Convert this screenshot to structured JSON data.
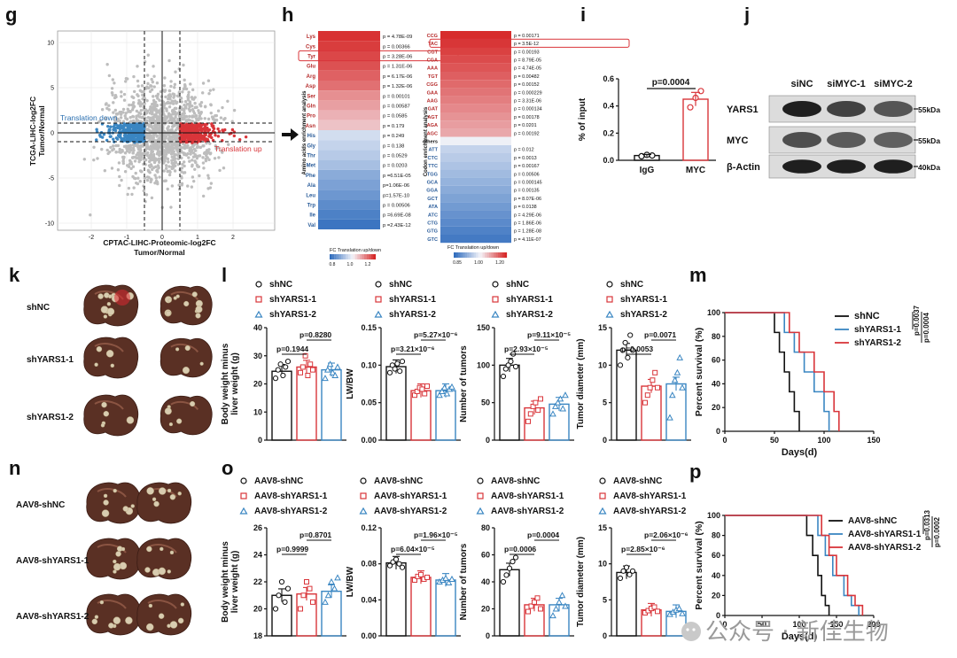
{
  "panels": {
    "g": "g",
    "h": "h",
    "i": "i",
    "j": "j",
    "k": "k",
    "l": "l",
    "m": "m",
    "n": "n",
    "o": "o",
    "p": "p"
  },
  "colors": {
    "black": "#111111",
    "red": "#d9353a",
    "blue": "#3a86c2",
    "gray": "#bdbdbd"
  },
  "scatter": {
    "ylabel": "TCGA-LIHC-log2FC\nTumor/Normal",
    "xlabel1": "CPTAC-LIHC-Proteomic-log2FC",
    "xlabel2": "Tumor/Normal",
    "label_down": "Translation down",
    "label_up": "Translation up",
    "xticks": [
      "-2",
      "-1",
      "0",
      "1",
      "2"
    ],
    "yticks": [
      "10",
      "5",
      "0",
      "-5",
      "-10"
    ]
  },
  "heatmap_aa": {
    "side_label": "Amino acids enrichment analysis",
    "rows": [
      {
        "aa": "Lys",
        "p": "p = 4.78E-09"
      },
      {
        "aa": "Cys",
        "p": "p = 0.00366"
      },
      {
        "aa": "Tyr",
        "p": "p = 3.28E-06"
      },
      {
        "aa": "Glu",
        "p": "p = 1.31E-06"
      },
      {
        "aa": "Arg",
        "p": "p = 6.17E-06"
      },
      {
        "aa": "Asp",
        "p": "p = 1.32E-06"
      },
      {
        "aa": "Ser",
        "p": "p = 0.00101"
      },
      {
        "aa": "Gln",
        "p": "p = 0.00587"
      },
      {
        "aa": "Pro",
        "p": "p = 0.0585"
      },
      {
        "aa": "Asn",
        "p": "p = 0.179"
      },
      {
        "aa": "His",
        "p": "p = 0.249"
      },
      {
        "aa": "Gly",
        "p": "p = 0.138"
      },
      {
        "aa": "Thr",
        "p": "p = 0.0529"
      },
      {
        "aa": "Met",
        "p": "p = 0.0203"
      },
      {
        "aa": "Phe",
        "p": "p =6.51E-05"
      },
      {
        "aa": "Ala",
        "p": "p=1.06E-06"
      },
      {
        "aa": "Leu",
        "p": "p=1.57E-10"
      },
      {
        "aa": "Trp",
        "p": "p = 0.00506"
      },
      {
        "aa": "Ile",
        "p": "p =6.69E-08"
      },
      {
        "aa": "Val",
        "p": "p =2.43E-12"
      }
    ],
    "legend_title": "FC Translation up/down",
    "legend_ticks": [
      "0.8",
      "1.0",
      "1.2"
    ]
  },
  "heatmap_codon": {
    "side_label": "Codon enrichment analysis",
    "others_label": "others",
    "rows": [
      {
        "c": "CCG",
        "p": "p = 0.00171"
      },
      {
        "c": "TAC",
        "p": "p = 3.5E-12"
      },
      {
        "c": "CGT",
        "p": "p = 0.00193"
      },
      {
        "c": "CGA",
        "p": "p = 8.79E-05"
      },
      {
        "c": "AAA",
        "p": "p = 4.74E-05"
      },
      {
        "c": "TGT",
        "p": "p = 0.00482"
      },
      {
        "c": "CGG",
        "p": "p = 0.00152"
      },
      {
        "c": "GAA",
        "p": "p = 0.000229"
      },
      {
        "c": "AAG",
        "p": "p = 3.31E-06"
      },
      {
        "c": "GAT",
        "p": "p = 0.000134"
      },
      {
        "c": "AGT",
        "p": "p = 0.00178"
      },
      {
        "c": "AGA",
        "p": "p = 0.0201"
      },
      {
        "c": "AGC",
        "p": "p = 0.00192"
      },
      {
        "c": "ATT",
        "p": "p = 0.012"
      },
      {
        "c": "CTC",
        "p": "p = 0.0013"
      },
      {
        "c": "TTC",
        "p": "p = 0.00167"
      },
      {
        "c": "TGG",
        "p": "p = 0.00506"
      },
      {
        "c": "GCA",
        "p": "p = 0.000145"
      },
      {
        "c": "GGA",
        "p": "p = 0.00135"
      },
      {
        "c": "GCT",
        "p": "p = 8.07E-06"
      },
      {
        "c": "ATA",
        "p": "p = 0.0138"
      },
      {
        "c": "ATC",
        "p": "p = 4.29E-06"
      },
      {
        "c": "CTG",
        "p": "p = 1.86E-06"
      },
      {
        "c": "GTG",
        "p": "p = 1.28E-08"
      },
      {
        "c": "GTC",
        "p": "p = 4.11E-07"
      }
    ],
    "legend_title": "FC Translation up/down",
    "legend_ticks": [
      "0.85",
      "1.00",
      "1.20"
    ]
  },
  "panel_i": {
    "ylabel": "% of input",
    "pval": "p=0.0004",
    "yticks": [
      "0.0",
      "0.2",
      "0.4",
      "0.6"
    ],
    "cats": [
      "IgG",
      "MYC"
    ]
  },
  "panel_j": {
    "lanes": [
      "siNC",
      "siMYC-1",
      "siMYC-2"
    ],
    "bands": [
      "YARS1",
      "MYC",
      "β-Actin"
    ],
    "sizes": [
      "55kDa",
      "55kDa",
      "40kDa"
    ]
  },
  "panel_k": {
    "labels": [
      "shNC",
      "shYARS1-1",
      "shYARS1-2"
    ]
  },
  "panel_n": {
    "labels": [
      "AAV8-shNC",
      "AAV8-shYARS1-1",
      "AAV8-shYARS1-2"
    ]
  },
  "panel_l": {
    "legend": [
      "shNC",
      "shYARS1-1",
      "shYARS1-2"
    ],
    "plots": [
      {
        "ylabel": "Body weight minus\nliver weight (g)",
        "yticks": [
          "0",
          "10",
          "20",
          "30",
          "40"
        ],
        "p1": "p=0.1944",
        "p2": "p=0.8280"
      },
      {
        "ylabel": "LW/BW",
        "yticks": [
          "0.00",
          "0.05",
          "0.10",
          "0.15"
        ],
        "p1": "p=3.21×10⁻⁶",
        "p2": "p=5.27×10⁻⁶"
      },
      {
        "ylabel": "Number of tumors",
        "yticks": [
          "0",
          "50",
          "100",
          "150"
        ],
        "p1": "p=2.93×10⁻⁵",
        "p2": "p=9.11×10⁻⁵"
      },
      {
        "ylabel": "Tumor diameter (mm)",
        "yticks": [
          "0",
          "5",
          "10",
          "15"
        ],
        "p1": "p=0.0053",
        "p2": "p=0.0071"
      }
    ]
  },
  "panel_o": {
    "legend": [
      "AAV8-shNC",
      "AAV8-shYARS1-1",
      "AAV8-shYARS1-2"
    ],
    "plots": [
      {
        "ylabel": "Body weight minus\nliver weight (g)",
        "yticks": [
          "18",
          "20",
          "22",
          "24",
          "26"
        ],
        "p1": "p=0.9999",
        "p2": "p=0.8701"
      },
      {
        "ylabel": "LW/BW",
        "yticks": [
          "0.00",
          "0.04",
          "0.08",
          "0.12"
        ],
        "p1": "p=6.04×10⁻⁵",
        "p2": "p=1.96×10⁻⁵"
      },
      {
        "ylabel": "Number of tumors",
        "yticks": [
          "0",
          "20",
          "40",
          "60",
          "80"
        ],
        "p1": "p=0.0006",
        "p2": "p=0.0004"
      },
      {
        "ylabel": "Tumor diameter (mm)",
        "yticks": [
          "0",
          "5",
          "10",
          "15"
        ],
        "p1": "p=2.85×10⁻⁶",
        "p2": "p=2.06×10⁻⁶"
      }
    ]
  },
  "panel_m": {
    "ylabel": "Percent survival (%)",
    "xlabel": "Days(d)",
    "legend": [
      "shNC",
      "shYARS1-1",
      "shYARS1-2"
    ],
    "xticks": [
      "0",
      "50",
      "100",
      "150"
    ],
    "yticks": [
      "0",
      "20",
      "40",
      "60",
      "80",
      "100"
    ],
    "p1": "p=0.0037",
    "p2": "p=0.0004"
  },
  "panel_p": {
    "ylabel": "Percent survival (%)",
    "xlabel": "Days(d)",
    "legend": [
      "AAV8-shNC",
      "AAV8-shYARS1-1",
      "AAV8-shYARS1-2"
    ],
    "xticks": [
      "0",
      "50",
      "100",
      "150",
      "200"
    ],
    "yticks": [
      "0",
      "20",
      "40",
      "60",
      "80",
      "100"
    ],
    "p1": "p=0.0313",
    "p2": "p=0.0002"
  },
  "watermark": "公众号 · 新佳生物",
  "chart_data": [
    {
      "type": "bar",
      "title": "i",
      "ylabel": "% of input",
      "categories": [
        "IgG",
        "MYC"
      ],
      "values": [
        0.035,
        0.45
      ],
      "points": [
        [
          0.03,
          0.04,
          0.035
        ],
        [
          0.39,
          0.46,
          0.51
        ]
      ],
      "ylim": [
        0,
        0.6
      ],
      "annotation": "p=0.0004"
    },
    {
      "type": "bar",
      "title": "l",
      "categories": [
        "shNC",
        "shYARS1-1",
        "shYARS1-2"
      ],
      "series": [
        {
          "name": "Body weight minus liver weight (g)",
          "values": [
            24.5,
            26,
            25
          ],
          "ylim": [
            0,
            40
          ],
          "points": [
            [
              22,
              25,
              27,
              23,
              26,
              28
            ],
            [
              24,
              26,
              30,
              23,
              27,
              25
            ],
            [
              22,
              25,
              27,
              24,
              23,
              26
            ]
          ]
        },
        {
          "name": "LW/BW",
          "values": [
            0.098,
            0.066,
            0.066
          ],
          "ylim": [
            0,
            0.15
          ],
          "points": [
            [
              0.09,
              0.1,
              0.095,
              0.102,
              0.092,
              0.105
            ],
            [
              0.06,
              0.065,
              0.07,
              0.068,
              0.062,
              0.072
            ],
            [
              0.06,
              0.065,
              0.07,
              0.062,
              0.068,
              0.071
            ]
          ]
        },
        {
          "name": "Number of tumors",
          "values": [
            100,
            43,
            48
          ],
          "ylim": [
            0,
            150
          ],
          "points": [
            [
              85,
              95,
              100,
              105,
              115,
              98
            ],
            [
              25,
              35,
              45,
              50,
              40,
              55
            ],
            [
              35,
              45,
              50,
              55,
              42,
              60
            ]
          ]
        },
        {
          "name": "Tumor diameter (mm)",
          "values": [
            12,
            7.2,
            7.5
          ],
          "ylim": [
            0,
            15
          ],
          "points": [
            [
              10,
              12,
              13,
              11,
              14,
              12
            ],
            [
              5,
              6,
              7,
              8,
              9,
              7
            ],
            [
              3,
              6,
              8,
              9,
              11,
              7
            ]
          ]
        }
      ]
    },
    {
      "type": "bar",
      "title": "o",
      "categories": [
        "AAV8-shNC",
        "AAV8-shYARS1-1",
        "AAV8-shYARS1-2"
      ],
      "series": [
        {
          "name": "Body weight minus liver weight (g)",
          "values": [
            21,
            21.1,
            21.3
          ],
          "ylim": [
            18,
            26
          ],
          "points": [
            [
              20,
              21,
              22,
              20.5,
              21.5
            ],
            [
              20,
              21,
              22,
              21.5,
              20.5
            ],
            [
              20.5,
              21,
              22,
              21.5,
              22.3
            ]
          ]
        },
        {
          "name": "LW/BW",
          "values": [
            0.081,
            0.065,
            0.062
          ],
          "ylim": [
            0,
            0.12
          ],
          "points": [
            [
              0.078,
              0.082,
              0.085,
              0.08,
              0.076
            ],
            [
              0.062,
              0.066,
              0.068,
              0.063,
              0.065
            ],
            [
              0.06,
              0.062,
              0.064,
              0.059,
              0.063
            ]
          ]
        },
        {
          "name": "Number of tumors",
          "values": [
            49,
            23,
            23
          ],
          "ylim": [
            0,
            80
          ],
          "points": [
            [
              40,
              45,
              50,
              55,
              58
            ],
            [
              18,
              22,
              25,
              28,
              20
            ],
            [
              15,
              20,
              25,
              30,
              22
            ]
          ]
        },
        {
          "name": "Tumor diameter (mm)",
          "values": [
            8.8,
            3.6,
            3.4
          ],
          "ylim": [
            0,
            15
          ],
          "points": [
            [
              8,
              9,
              9.5,
              8.5,
              9
            ],
            [
              3.2,
              3.5,
              3.8,
              4,
              3.4
            ],
            [
              3,
              3.3,
              3.6,
              3.8,
              3.1
            ]
          ]
        }
      ]
    },
    {
      "type": "line",
      "title": "m",
      "xlabel": "Days(d)",
      "ylabel": "Percent survival (%)",
      "xlim": [
        0,
        150
      ],
      "ylim": [
        0,
        100
      ],
      "series": [
        {
          "name": "shNC",
          "x": [
            0,
            50,
            55,
            60,
            65,
            70,
            75
          ],
          "y": [
            100,
            83.3,
            66.7,
            50,
            33.3,
            16.7,
            0
          ]
        },
        {
          "name": "shYARS1-1",
          "x": [
            0,
            60,
            70,
            80,
            90,
            100,
            105
          ],
          "y": [
            100,
            83.3,
            66.7,
            50,
            33.3,
            16.7,
            0
          ]
        },
        {
          "name": "shYARS1-2",
          "x": [
            0,
            65,
            75,
            90,
            100,
            110,
            115
          ],
          "y": [
            100,
            83.3,
            66.7,
            50,
            33.3,
            16.7,
            0
          ]
        }
      ]
    },
    {
      "type": "line",
      "title": "p",
      "xlabel": "Days(d)",
      "ylabel": "Percent survival (%)",
      "xlim": [
        0,
        200
      ],
      "ylim": [
        0,
        100
      ],
      "series": [
        {
          "name": "AAV8-shNC",
          "x": [
            0,
            110,
            118,
            125,
            130,
            135,
            140
          ],
          "y": [
            100,
            80,
            60,
            40,
            20,
            10,
            0
          ]
        },
        {
          "name": "AAV8-shYARS1-1",
          "x": [
            0,
            125,
            135,
            145,
            160,
            170,
            180
          ],
          "y": [
            100,
            80,
            60,
            40,
            20,
            10,
            0
          ]
        },
        {
          "name": "AAV8-shYARS1-2",
          "x": [
            0,
            130,
            140,
            150,
            165,
            175,
            185
          ],
          "y": [
            100,
            80,
            60,
            40,
            20,
            10,
            0
          ]
        }
      ]
    }
  ]
}
